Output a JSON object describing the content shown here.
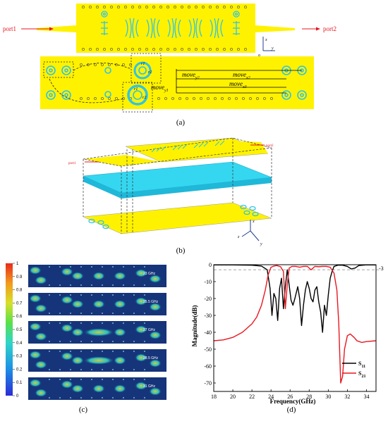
{
  "panel_a": {
    "port1": "port1",
    "port2": "port2",
    "axis_x": "x",
    "axis_y": "y",
    "axis_o": "o",
    "move_y1": "move",
    "move_y1_sub": "y1",
    "move_y2": "move",
    "move_y2_sub": "y2",
    "move_x2": "move",
    "move_x2_sub": "x2",
    "move_x3": "move",
    "move_x3_sub": "x3",
    "r1": "r1",
    "r2": "r2",
    "caption": "(a)"
  },
  "panel_b": {
    "port1": "port1",
    "port2": "port2",
    "axis_x": "x",
    "axis_y": "y",
    "axis_z": "z",
    "caption": "(b)"
  },
  "panel_c": {
    "colorbar_ticks": [
      "1",
      "0.9",
      "0.8",
      "0.7",
      "0.6",
      "0.5",
      "0.4",
      "0.3",
      "0.2",
      "0.1",
      "0"
    ],
    "frequencies": [
      "23 GHz",
      "25.5 GHz",
      "27 GHz",
      "28.5 GHz",
      "31 GHz"
    ],
    "caption": "(c)"
  },
  "panel_d": {
    "caption": "(d)",
    "threshold_label": "-3"
  },
  "chart_data": {
    "type": "line",
    "xlabel": "Frequency(GHz)",
    "ylabel": "Magnitude(dB)",
    "xlim": [
      18,
      35
    ],
    "ylim": [
      -75,
      0
    ],
    "xticks": [
      18,
      20,
      22,
      24,
      26,
      28,
      30,
      32,
      34
    ],
    "yticks": [
      0,
      -10,
      -20,
      -30,
      -40,
      -50,
      -60,
      -70
    ],
    "reference_line": -3,
    "legend_position": "bottom-right",
    "series": [
      {
        "name": "S11",
        "color": "#000000",
        "x": [
          18,
          20,
          22,
          23,
          23.6,
          23.9,
          24.1,
          24.3,
          24.5,
          24.7,
          24.9,
          25.1,
          25.3,
          25.5,
          25.7,
          25.9,
          26.1,
          26.3,
          26.5,
          26.8,
          27.0,
          27.2,
          27.4,
          27.6,
          27.8,
          28.0,
          28.2,
          28.4,
          28.6,
          28.8,
          29.0,
          29.2,
          29.4,
          29.6,
          29.8,
          30.0,
          30.2,
          30.4,
          30.6,
          31.0,
          31.5,
          32.0,
          32.4,
          32.8,
          33.2,
          34.0,
          35.0
        ],
        "y": [
          -0.1,
          -0.1,
          -0.3,
          -0.8,
          -3,
          -14,
          -30,
          -17,
          -20,
          -33,
          -14,
          -8,
          -26,
          -13,
          -3,
          -12,
          -21,
          -24,
          -20,
          -13,
          -20,
          -36,
          -24,
          -15,
          -10,
          -14,
          -20,
          -22,
          -15,
          -13,
          -22,
          -28,
          -40,
          -24,
          -30,
          -18,
          -8,
          -4,
          -1,
          -0.3,
          -0.3,
          -1,
          -2.5,
          -2,
          -0.5,
          -0.1,
          -0.1
        ]
      },
      {
        "name": "S21",
        "color": "#e8171f",
        "x": [
          18,
          19,
          20,
          21,
          22,
          22.5,
          23,
          23.4,
          23.7,
          24.0,
          24.3,
          24.6,
          25.0,
          25.3,
          25.5,
          25.7,
          25.9,
          26.2,
          26.6,
          27.0,
          27.4,
          27.8,
          28.2,
          28.6,
          29.0,
          29.4,
          29.8,
          30.2,
          30.6,
          30.9,
          31.1,
          31.3,
          31.5,
          31.7,
          32.0,
          32.3,
          32.7,
          33.0,
          33.5,
          34.0,
          35.0
        ],
        "y": [
          -45,
          -44.5,
          -43,
          -40,
          -35,
          -31,
          -24,
          -15,
          -6,
          -1.5,
          -0.8,
          -0.5,
          -1.2,
          -4,
          -26,
          -12,
          -2,
          -1,
          -1,
          -1.5,
          -1,
          -1,
          -3,
          -1,
          -1.2,
          -1,
          -1,
          -1.5,
          -5,
          -15,
          -35,
          -70,
          -66,
          -50,
          -42,
          -41,
          -43,
          -45,
          -46,
          -45.5,
          -45
        ]
      }
    ]
  }
}
